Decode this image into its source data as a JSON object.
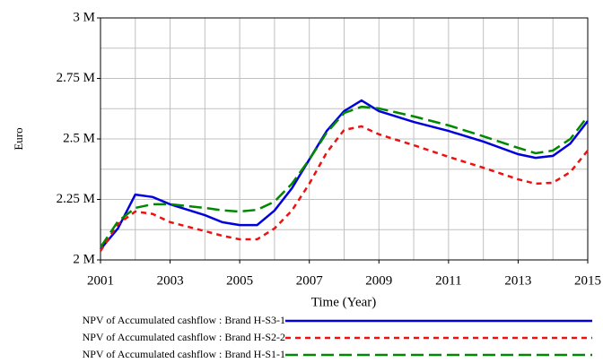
{
  "chart_data": {
    "type": "line",
    "ylabel": "Euro",
    "xlabel": "Time (Year)",
    "xlim": [
      2001,
      2015
    ],
    "ylim": [
      2000000,
      3000000
    ],
    "xticks": [
      2001,
      2003,
      2005,
      2007,
      2009,
      2011,
      2013,
      2015
    ],
    "yticks": [
      {
        "value": 2000000,
        "label": "2 M"
      },
      {
        "value": 2250000,
        "label": "2.25 M"
      },
      {
        "value": 2500000,
        "label": "2.5 M"
      },
      {
        "value": 2750000,
        "label": "2.75 M"
      },
      {
        "value": 3000000,
        "label": "3 M"
      }
    ],
    "xgrid": [
      2001,
      2002,
      2003,
      2004,
      2005,
      2006,
      2007,
      2008,
      2009,
      2010,
      2011,
      2012,
      2013,
      2014,
      2015
    ],
    "ygrid": [
      2000000,
      2125000,
      2250000,
      2375000,
      2500000,
      2625000,
      2750000,
      2875000,
      3000000
    ],
    "grid": true,
    "x": [
      2001,
      2001.5,
      2002,
      2002.5,
      2003,
      2004,
      2004.5,
      2005,
      2005.5,
      2006,
      2006.5,
      2007,
      2007.5,
      2008,
      2008.5,
      2009,
      2010,
      2011,
      2012,
      2013,
      2013.5,
      2014,
      2014.5,
      2015
    ],
    "series": [
      {
        "name": "NPV of Accumulated cashflow : Brand H-S3-1",
        "color": "#0000dd",
        "dash": "solid",
        "values": [
          2044000,
          2130000,
          2270000,
          2260000,
          2230000,
          2185000,
          2156000,
          2144000,
          2144000,
          2204000,
          2296000,
          2415000,
          2533000,
          2615000,
          2659000,
          2615000,
          2570000,
          2533000,
          2489000,
          2437000,
          2422000,
          2430000,
          2481000,
          2574000
        ]
      },
      {
        "name": "NPV of Accumulated cashflow : Brand H-S2-2",
        "color": "#ee1111",
        "dash": "short",
        "values": [
          2037000,
          2148000,
          2200000,
          2190000,
          2156000,
          2119000,
          2100000,
          2085000,
          2085000,
          2130000,
          2204000,
          2315000,
          2444000,
          2537000,
          2552000,
          2519000,
          2474000,
          2426000,
          2381000,
          2333000,
          2315000,
          2319000,
          2363000,
          2452000
        ]
      },
      {
        "name": "NPV of Accumulated cashflow : Brand H-S1-1",
        "color": "#008800",
        "dash": "long",
        "values": [
          2052000,
          2159000,
          2215000,
          2230000,
          2230000,
          2215000,
          2205000,
          2200000,
          2207000,
          2241000,
          2315000,
          2415000,
          2526000,
          2607000,
          2633000,
          2626000,
          2593000,
          2556000,
          2511000,
          2463000,
          2441000,
          2452000,
          2500000,
          2593000
        ]
      }
    ]
  }
}
